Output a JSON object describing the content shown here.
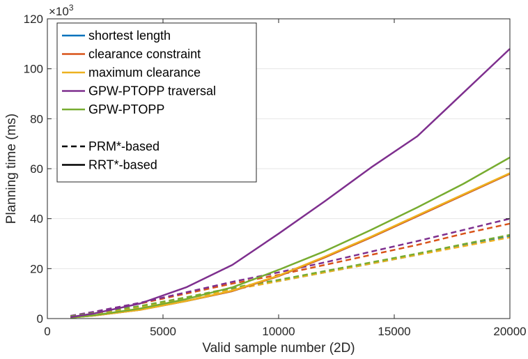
{
  "chart_data": {
    "type": "line",
    "title": "",
    "xlabel": "Valid sample number (2D)",
    "ylabel": "Planning time (ms)",
    "xlim": [
      0,
      20000
    ],
    "ylim": [
      0,
      120
    ],
    "xticks": [
      0,
      5000,
      10000,
      15000,
      20000
    ],
    "yticks": [
      0,
      20,
      40,
      60,
      80,
      100,
      120
    ],
    "y_exponent_label": "×10",
    "y_exponent_power": "3",
    "grid": "horizontal",
    "legend_position": "top-left",
    "series": [
      {
        "name": "shortest length",
        "color": "#0072bd",
        "style": "solid",
        "x": [
          1000,
          2000,
          4000,
          6000,
          8000,
          10000,
          12000,
          14000,
          16000,
          18000,
          20000
        ],
        "values": [
          0.4,
          1.2,
          3.5,
          7.0,
          11.0,
          17.0,
          24.5,
          32.5,
          41.0,
          49.5,
          58.0
        ]
      },
      {
        "name": "clearance constraint",
        "color": "#d95319",
        "style": "solid",
        "x": [
          1000,
          2000,
          4000,
          6000,
          8000,
          10000,
          12000,
          14000,
          16000,
          18000,
          20000
        ],
        "values": [
          0.4,
          1.2,
          3.5,
          7.0,
          11.0,
          17.0,
          24.5,
          32.5,
          41.0,
          49.5,
          58.0
        ]
      },
      {
        "name": "maximum clearance",
        "color": "#edb120",
        "style": "solid",
        "x": [
          1000,
          2000,
          4000,
          6000,
          8000,
          10000,
          12000,
          14000,
          16000,
          18000,
          20000
        ],
        "values": [
          0.4,
          1.2,
          3.5,
          7.0,
          11.2,
          17.2,
          24.8,
          32.8,
          41.3,
          49.8,
          58.2
        ]
      },
      {
        "name": "GPW-PTOPP traversal",
        "color": "#7e2f8e",
        "style": "solid",
        "x": [
          1000,
          2000,
          4000,
          6000,
          8000,
          10000,
          12000,
          14000,
          16000,
          18000,
          20000
        ],
        "values": [
          0.6,
          2.0,
          6.0,
          12.5,
          21.5,
          34.0,
          47.0,
          60.5,
          73.0,
          90.5,
          108.0
        ]
      },
      {
        "name": "GPW-PTOPP",
        "color": "#77ac30",
        "style": "solid",
        "x": [
          1000,
          2000,
          4000,
          6000,
          8000,
          10000,
          12000,
          14000,
          16000,
          18000,
          20000
        ],
        "values": [
          0.4,
          1.3,
          4.0,
          7.8,
          12.5,
          19.5,
          27.0,
          35.5,
          44.5,
          54.0,
          64.5
        ]
      },
      {
        "name": "shortest length (PRM*)",
        "color": "#0072bd",
        "style": "dashed",
        "x": [
          1000,
          2000,
          4000,
          6000,
          8000,
          10000,
          12000,
          14000,
          16000,
          18000,
          20000
        ],
        "values": [
          0.8,
          2.0,
          4.5,
          8.0,
          12.0,
          15.0,
          18.5,
          22.0,
          25.5,
          29.5,
          33.0
        ]
      },
      {
        "name": "clearance constraint (PRM*)",
        "color": "#d95319",
        "style": "dashed",
        "x": [
          1000,
          2000,
          4000,
          6000,
          8000,
          10000,
          12000,
          14000,
          16000,
          18000,
          20000
        ],
        "values": [
          1.0,
          2.5,
          6.0,
          10.0,
          14.0,
          17.5,
          21.5,
          25.5,
          29.5,
          34.0,
          38.0
        ]
      },
      {
        "name": "maximum clearance (PRM*)",
        "color": "#edb120",
        "style": "dashed",
        "x": [
          1000,
          2000,
          4000,
          6000,
          8000,
          10000,
          12000,
          14000,
          16000,
          18000,
          20000
        ],
        "values": [
          0.8,
          2.0,
          4.5,
          8.0,
          11.5,
          15.0,
          18.5,
          22.0,
          25.5,
          29.0,
          32.5
        ]
      },
      {
        "name": "GPW-PTOPP traversal (PRM*)",
        "color": "#7e2f8e",
        "style": "dashed",
        "x": [
          1000,
          2000,
          4000,
          6000,
          8000,
          10000,
          12000,
          14000,
          16000,
          18000,
          20000
        ],
        "values": [
          1.1,
          2.7,
          6.3,
          10.5,
          14.7,
          18.5,
          22.5,
          26.8,
          31.0,
          35.5,
          40.0
        ]
      },
      {
        "name": "GPW-PTOPP (PRM*)",
        "color": "#77ac30",
        "style": "dashed",
        "x": [
          1000,
          2000,
          4000,
          6000,
          8000,
          10000,
          12000,
          14000,
          16000,
          18000,
          20000
        ],
        "values": [
          0.9,
          2.2,
          5.0,
          8.5,
          12.3,
          15.5,
          19.0,
          22.5,
          26.0,
          29.8,
          33.5
        ]
      }
    ],
    "legend": {
      "entries": [
        {
          "label": "shortest length",
          "color": "#0072bd",
          "style": "solid"
        },
        {
          "label": "clearance constraint",
          "color": "#d95319",
          "style": "solid"
        },
        {
          "label": "maximum clearance",
          "color": "#edb120",
          "style": "solid"
        },
        {
          "label": "GPW-PTOPP traversal",
          "color": "#7e2f8e",
          "style": "solid"
        },
        {
          "label": "GPW-PTOPP",
          "color": "#77ac30",
          "style": "solid"
        },
        {
          "label": "",
          "color": "#ffffff",
          "style": "none"
        },
        {
          "label": "PRM*-based",
          "color": "#000000",
          "style": "dashed"
        },
        {
          "label": "RRT*-based",
          "color": "#000000",
          "style": "solid"
        }
      ]
    }
  }
}
